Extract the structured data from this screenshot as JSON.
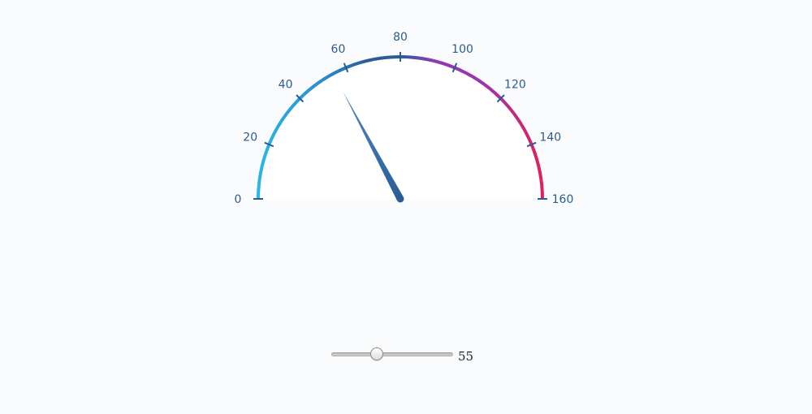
{
  "gauge": {
    "min": 0,
    "max": 160,
    "value": 55,
    "tick_labels": [
      "0",
      "20",
      "40",
      "60",
      "80",
      "100",
      "120",
      "140",
      "160"
    ],
    "colors": {
      "arc_low": "#29b6e8",
      "arc_mid": "#2a5d97",
      "arc_high": "#9b35b0",
      "arc_top": "#e0205c",
      "needle": "#2a5d97",
      "ticks": "#2a5d97",
      "labels": "#2b5c8f"
    }
  },
  "slider": {
    "min": 0,
    "max": 160,
    "value": 55,
    "value_label": "55"
  }
}
